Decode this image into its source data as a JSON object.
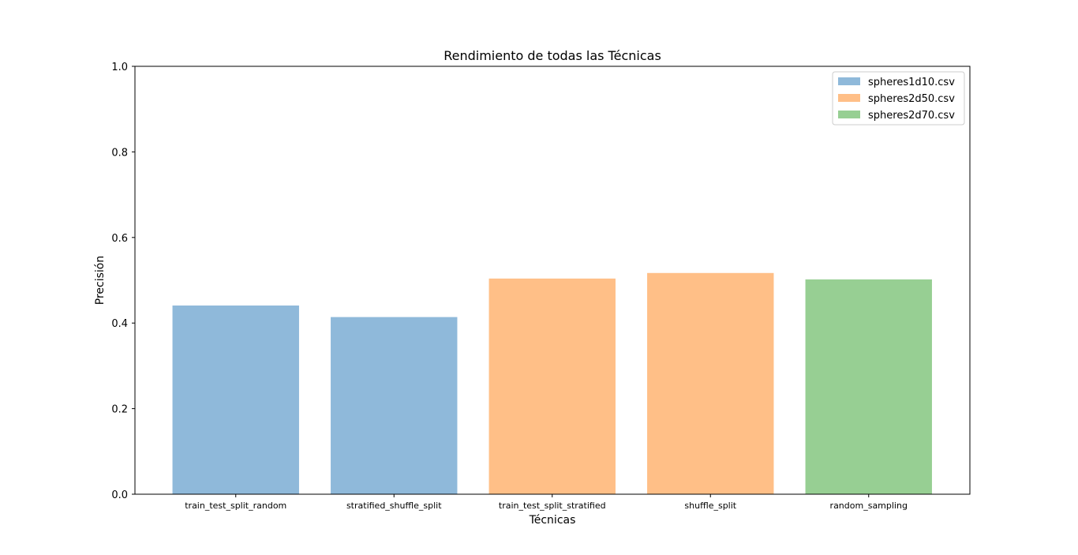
{
  "chart_data": {
    "type": "bar",
    "title": "Rendimiento de todas las Técnicas",
    "xlabel": "Técnicas",
    "ylabel": "Precisión",
    "ylim": [
      0,
      1.0
    ],
    "yticks": [
      "0.0",
      "0.2",
      "0.4",
      "0.6",
      "0.8",
      "1.0"
    ],
    "ytick_values": [
      0.0,
      0.2,
      0.4,
      0.6,
      0.8,
      1.0
    ],
    "grid": false,
    "legend_position": "top-right",
    "categories": [
      "train_test_split_random",
      "stratified_shuffle_split",
      "train_test_split_stratified",
      "shuffle_split",
      "random_sampling"
    ],
    "series": [
      {
        "name": "spheres1d10.csv",
        "color": "#8fb9da",
        "values": [
          0.441,
          0.414,
          null,
          null,
          null
        ]
      },
      {
        "name": "spheres2d50.csv",
        "color": "#ffbf87",
        "values": [
          null,
          null,
          0.504,
          0.517,
          null
        ]
      },
      {
        "name": "spheres2d70.csv",
        "color": "#97cf93",
        "values": [
          null,
          null,
          null,
          null,
          0.502
        ]
      }
    ]
  }
}
